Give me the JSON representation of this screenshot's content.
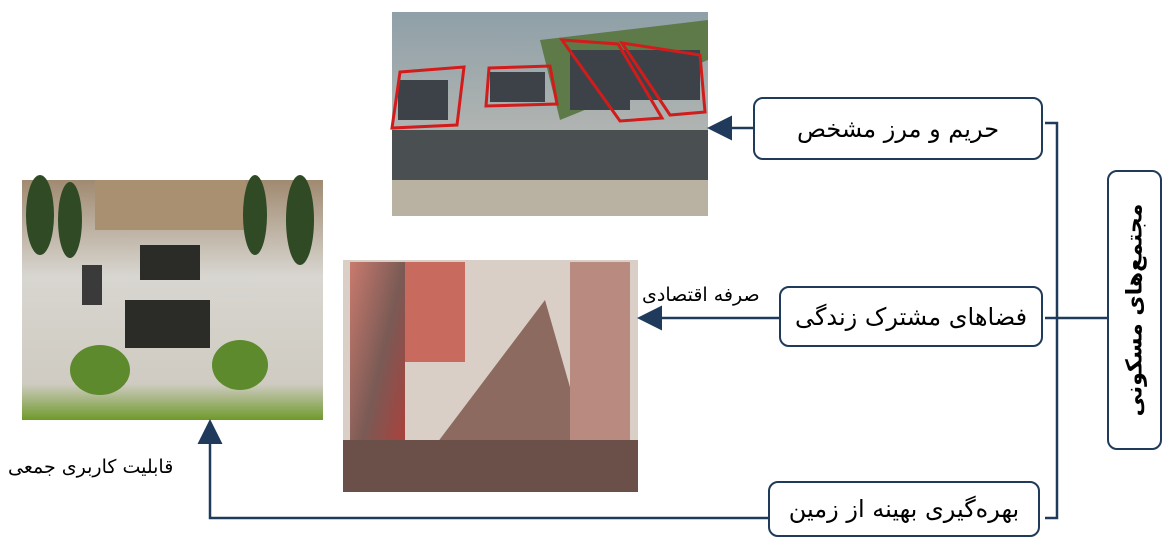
{
  "root": {
    "label": "مجتمع‌های مسکونی"
  },
  "nodes": [
    {
      "label": "حریم و مرز مشخص"
    },
    {
      "label": "فضاهای مشترک زندگی"
    },
    {
      "label": "بهره‌گیری بهینه از زمین"
    }
  ],
  "edge_labels": [
    "صرفه اقتصادی",
    "قابلیت کاربری جمعی"
  ]
}
